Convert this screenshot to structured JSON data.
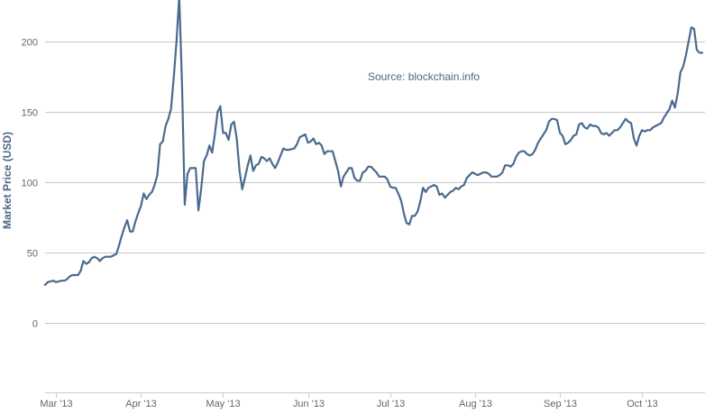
{
  "chart_data": {
    "type": "line",
    "title": "",
    "xlabel": "",
    "ylabel": "Market Price (USD)",
    "annotation": "Source: blockchain.info",
    "ylim": [
      -50,
      230
    ],
    "grid": true,
    "legend": "none",
    "yticks": [
      0,
      50,
      100,
      150,
      200
    ],
    "xticks": [
      {
        "label": "Mar '13",
        "day": 4
      },
      {
        "label": "Apr '13",
        "day": 35
      },
      {
        "label": "May '13",
        "day": 65
      },
      {
        "label": "Jun '13",
        "day": 96
      },
      {
        "label": "Jul '13",
        "day": 126
      },
      {
        "label": "Aug '13",
        "day": 157
      },
      {
        "label": "Sep '13",
        "day": 188
      },
      {
        "label": "Oct '13",
        "day": 218
      }
    ],
    "xlim": [
      0,
      250
    ],
    "colors": {
      "line": "#4a6a8f",
      "grid": "#c8c8c8",
      "axis": "#c0d0e0",
      "text": "#666666",
      "label": "#4d6785"
    },
    "series": [
      {
        "values": [
          [
            0,
            27
          ],
          [
            1,
            29
          ],
          [
            3,
            30
          ],
          [
            4,
            29
          ],
          [
            6,
            30
          ],
          [
            7,
            30
          ],
          [
            8,
            31
          ],
          [
            9,
            33
          ],
          [
            10,
            34
          ],
          [
            12,
            34
          ],
          [
            13,
            37
          ],
          [
            14,
            44
          ],
          [
            15,
            42
          ],
          [
            16,
            43
          ],
          [
            17,
            46
          ],
          [
            18,
            47
          ],
          [
            19,
            46
          ],
          [
            20,
            44
          ],
          [
            21,
            46
          ],
          [
            22,
            47
          ],
          [
            24,
            47
          ],
          [
            25,
            48
          ],
          [
            26,
            49
          ],
          [
            27,
            55
          ],
          [
            28,
            62
          ],
          [
            29,
            68
          ],
          [
            30,
            73
          ],
          [
            31,
            65
          ],
          [
            32,
            65
          ],
          [
            33,
            72
          ],
          [
            34,
            78
          ],
          [
            35,
            83
          ],
          [
            36,
            92
          ],
          [
            37,
            88
          ],
          [
            38,
            91
          ],
          [
            39,
            93
          ],
          [
            40,
            98
          ],
          [
            41,
            105
          ],
          [
            42,
            127
          ],
          [
            43,
            129
          ],
          [
            44,
            140
          ],
          [
            45,
            145
          ],
          [
            46,
            152
          ],
          [
            47,
            175
          ],
          [
            48,
            200
          ],
          [
            49,
            232
          ],
          [
            50,
            170
          ],
          [
            51,
            84
          ],
          [
            52,
            106
          ],
          [
            53,
            110
          ],
          [
            54,
            110
          ],
          [
            55,
            110
          ],
          [
            56,
            80
          ],
          [
            57,
            95
          ],
          [
            58,
            115
          ],
          [
            59,
            119
          ],
          [
            60,
            126
          ],
          [
            61,
            121
          ],
          [
            62,
            134
          ],
          [
            63,
            150
          ],
          [
            64,
            154
          ],
          [
            65,
            135
          ],
          [
            66,
            135
          ],
          [
            67,
            130
          ],
          [
            68,
            141
          ],
          [
            69,
            143
          ],
          [
            70,
            131
          ],
          [
            71,
            108
          ],
          [
            72,
            95
          ],
          [
            73,
            103
          ],
          [
            74,
            112
          ],
          [
            75,
            119
          ],
          [
            76,
            108
          ],
          [
            77,
            112
          ],
          [
            78,
            113
          ],
          [
            79,
            118
          ],
          [
            80,
            117
          ],
          [
            81,
            115
          ],
          [
            82,
            117
          ],
          [
            83,
            113
          ],
          [
            84,
            110
          ],
          [
            85,
            114
          ],
          [
            86,
            119
          ],
          [
            87,
            124
          ],
          [
            88,
            123
          ],
          [
            89,
            123
          ],
          [
            91,
            124
          ],
          [
            92,
            127
          ],
          [
            93,
            132
          ],
          [
            95,
            134
          ],
          [
            96,
            128
          ],
          [
            97,
            129
          ],
          [
            98,
            131
          ],
          [
            99,
            127
          ],
          [
            100,
            128
          ],
          [
            101,
            126
          ],
          [
            102,
            120
          ],
          [
            103,
            122
          ],
          [
            104,
            122
          ],
          [
            105,
            122
          ],
          [
            106,
            115
          ],
          [
            107,
            108
          ],
          [
            108,
            97
          ],
          [
            109,
            104
          ],
          [
            110,
            107
          ],
          [
            111,
            110
          ],
          [
            112,
            110
          ],
          [
            113,
            103
          ],
          [
            114,
            101
          ],
          [
            115,
            101
          ],
          [
            116,
            107
          ],
          [
            117,
            108
          ],
          [
            118,
            111
          ],
          [
            119,
            111
          ],
          [
            120,
            109
          ],
          [
            121,
            107
          ],
          [
            122,
            104
          ],
          [
            123,
            104
          ],
          [
            124,
            104
          ],
          [
            125,
            102
          ],
          [
            126,
            97
          ],
          [
            127,
            96
          ],
          [
            128,
            96
          ],
          [
            129,
            92
          ],
          [
            130,
            87
          ],
          [
            131,
            78
          ],
          [
            132,
            71
          ],
          [
            133,
            70
          ],
          [
            134,
            76
          ],
          [
            135,
            76
          ],
          [
            136,
            79
          ],
          [
            137,
            86
          ],
          [
            138,
            96
          ],
          [
            139,
            93
          ],
          [
            140,
            96
          ],
          [
            141,
            97
          ],
          [
            142,
            98
          ],
          [
            143,
            97
          ],
          [
            144,
            91
          ],
          [
            145,
            92
          ],
          [
            146,
            89
          ],
          [
            147,
            91
          ],
          [
            148,
            93
          ],
          [
            149,
            94
          ],
          [
            150,
            96
          ],
          [
            151,
            95
          ],
          [
            152,
            97
          ],
          [
            153,
            98
          ],
          [
            154,
            103
          ],
          [
            155,
            105
          ],
          [
            156,
            107
          ],
          [
            157,
            106
          ],
          [
            158,
            105
          ],
          [
            159,
            106
          ],
          [
            160,
            107
          ],
          [
            161,
            107
          ],
          [
            162,
            106
          ],
          [
            163,
            104
          ],
          [
            164,
            104
          ],
          [
            165,
            104
          ],
          [
            166,
            105
          ],
          [
            167,
            107
          ],
          [
            168,
            112
          ],
          [
            169,
            112
          ],
          [
            170,
            111
          ],
          [
            171,
            113
          ],
          [
            172,
            118
          ],
          [
            173,
            121
          ],
          [
            174,
            122
          ],
          [
            175,
            122
          ],
          [
            176,
            120
          ],
          [
            177,
            119
          ],
          [
            178,
            120
          ],
          [
            179,
            123
          ],
          [
            180,
            128
          ],
          [
            181,
            131
          ],
          [
            182,
            134
          ],
          [
            183,
            137
          ],
          [
            184,
            143
          ],
          [
            185,
            145
          ],
          [
            186,
            145
          ],
          [
            187,
            144
          ],
          [
            188,
            135
          ],
          [
            189,
            133
          ],
          [
            190,
            127
          ],
          [
            191,
            128
          ],
          [
            192,
            130
          ],
          [
            193,
            133
          ],
          [
            194,
            134
          ],
          [
            195,
            141
          ],
          [
            196,
            142
          ],
          [
            197,
            139
          ],
          [
            198,
            138
          ],
          [
            199,
            141
          ],
          [
            200,
            140
          ],
          [
            201,
            140
          ],
          [
            202,
            139
          ],
          [
            203,
            135
          ],
          [
            204,
            134
          ],
          [
            205,
            135
          ],
          [
            206,
            133
          ],
          [
            207,
            135
          ],
          [
            208,
            137
          ],
          [
            209,
            137
          ],
          [
            210,
            139
          ],
          [
            211,
            142
          ],
          [
            212,
            145
          ],
          [
            213,
            143
          ],
          [
            214,
            142
          ],
          [
            215,
            131
          ],
          [
            216,
            126
          ],
          [
            217,
            133
          ],
          [
            218,
            137
          ],
          [
            219,
            136
          ],
          [
            220,
            137
          ],
          [
            221,
            137
          ],
          [
            222,
            139
          ],
          [
            223,
            140
          ],
          [
            224,
            141
          ],
          [
            225,
            142
          ],
          [
            226,
            146
          ],
          [
            227,
            149
          ],
          [
            228,
            152
          ],
          [
            229,
            158
          ],
          [
            230,
            153
          ],
          [
            231,
            163
          ],
          [
            232,
            178
          ],
          [
            233,
            182
          ],
          [
            234,
            190
          ],
          [
            235,
            200
          ],
          [
            236,
            210
          ],
          [
            237,
            209
          ],
          [
            238,
            194
          ],
          [
            239,
            192
          ],
          [
            240,
            192
          ]
        ]
      }
    ]
  }
}
